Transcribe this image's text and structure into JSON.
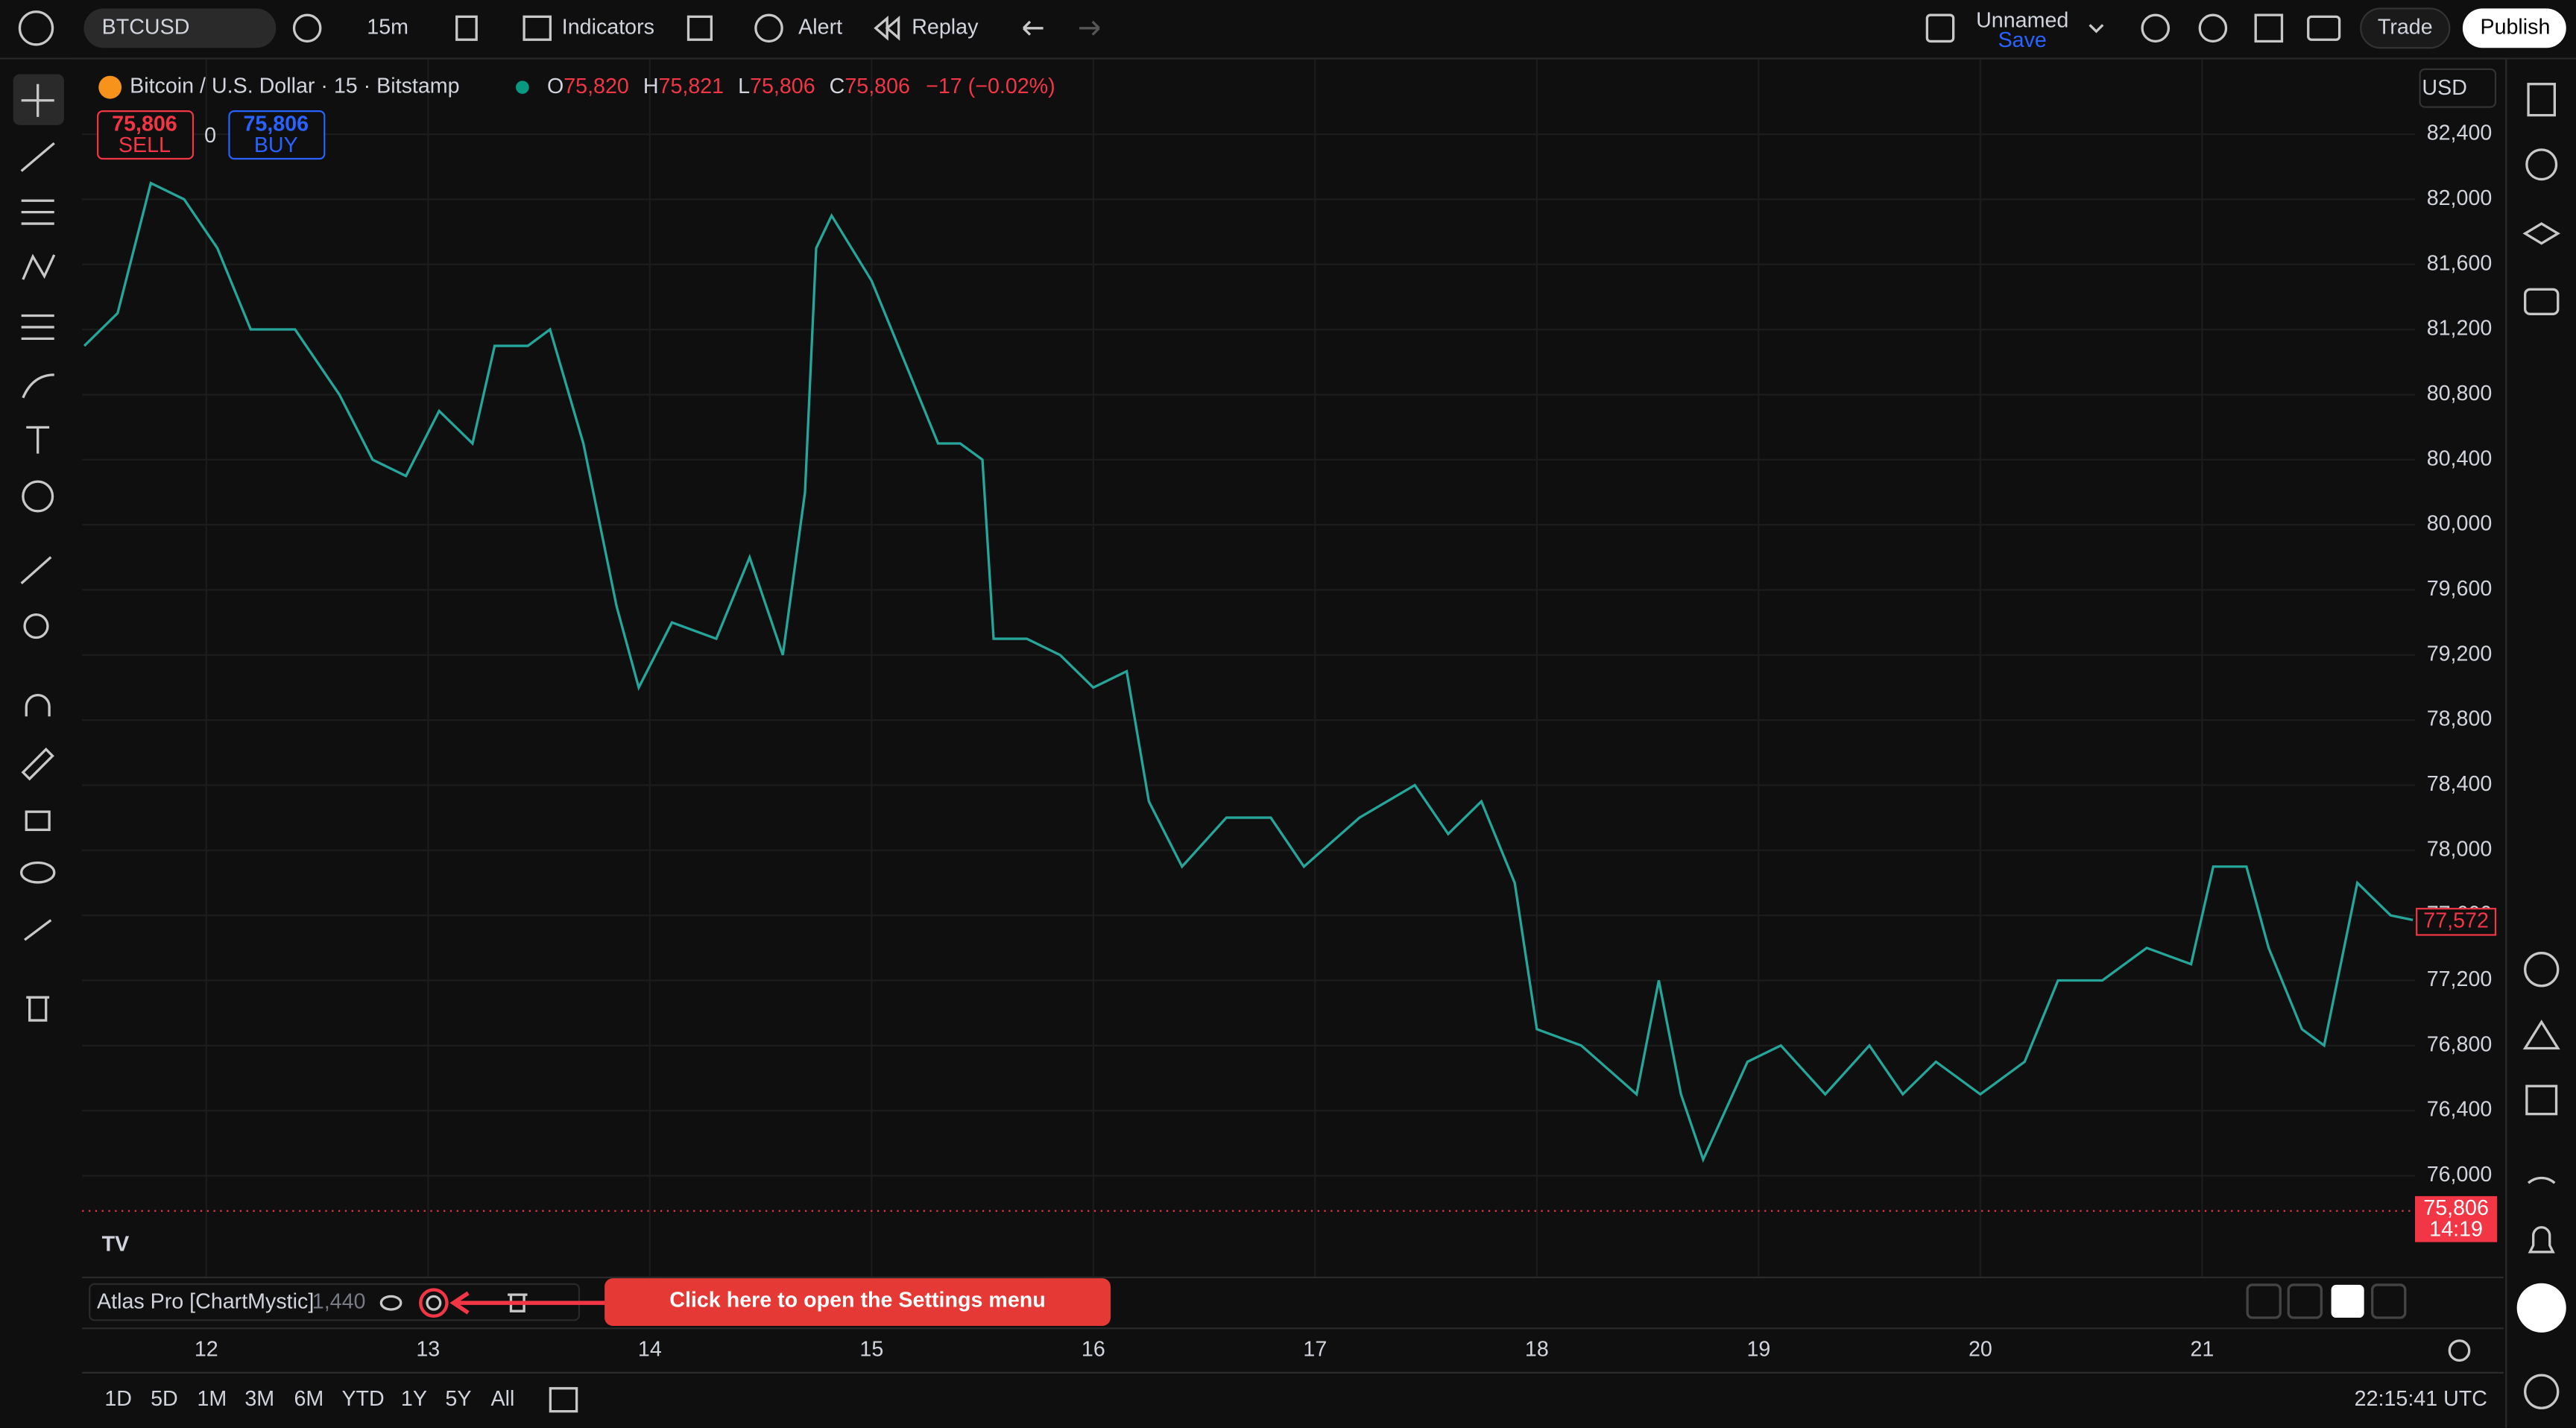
{
  "toolbar": {
    "symbol": "BTCUSD",
    "interval": "15m",
    "indicators": "Indicators",
    "alert": "Alert",
    "replay": "Replay",
    "layout_name": "Unnamed",
    "layout_save": "Save",
    "trade": "Trade",
    "publish": "Publish"
  },
  "legend": {
    "title": "Bitcoin / U.S. Dollar · 15 · Bitstamp",
    "open_label": "O",
    "open": "75,820",
    "high_label": "H",
    "high": "75,821",
    "low_label": "L",
    "low": "75,806",
    "close_label": "C",
    "close": "75,806",
    "change": "−17 (−0.02%)"
  },
  "trade_buttons": {
    "sell_price": "75,806",
    "sell": "SELL",
    "spread": "0",
    "buy_price": "75,806",
    "buy": "BUY"
  },
  "currency": "USD",
  "price_labels": {
    "last": "77,572",
    "current": "75,806",
    "countdown": "14:19"
  },
  "indicator": {
    "name": "Atlas Pro [ChartMystic]",
    "value": "1,440"
  },
  "annotation": "Click here to open the Settings menu",
  "ranges": [
    "1D",
    "5D",
    "1M",
    "3M",
    "6M",
    "YTD",
    "1Y",
    "5Y",
    "All"
  ],
  "clock": "22:15:41 UTC",
  "chart_data": {
    "type": "line",
    "grid": true,
    "xlim": [
      11.44,
      21.96
    ],
    "xticks": [
      12,
      13,
      14,
      15,
      16,
      17,
      18,
      19,
      20,
      21
    ],
    "ylim": [
      75380,
      82860
    ],
    "yticks": [
      {
        "value": 76000,
        "label": "76,000"
      },
      {
        "value": 76400,
        "label": "76,400"
      },
      {
        "value": 76800,
        "label": "76,800"
      },
      {
        "value": 77200,
        "label": "77,200"
      },
      {
        "value": 77600,
        "label": "77,600"
      },
      {
        "value": 78000,
        "label": "78,000"
      },
      {
        "value": 78400,
        "label": "78,400"
      },
      {
        "value": 78800,
        "label": "78,800"
      },
      {
        "value": 79200,
        "label": "79,200"
      },
      {
        "value": 79600,
        "label": "79,600"
      },
      {
        "value": 80000,
        "label": "80,000"
      },
      {
        "value": 80400,
        "label": "80,400"
      },
      {
        "value": 80800,
        "label": "80,800"
      },
      {
        "value": 81200,
        "label": "81,200"
      },
      {
        "value": 81600,
        "label": "81,600"
      },
      {
        "value": 82000,
        "label": "82,000"
      },
      {
        "value": 82400,
        "label": "82,400"
      }
    ],
    "series": [
      {
        "color": "#26a69a",
        "x": [
          11.45,
          11.6,
          11.75,
          11.9,
          12.05,
          12.2,
          12.4,
          12.6,
          12.75,
          12.9,
          13.05,
          13.2,
          13.3,
          13.45,
          13.55,
          13.7,
          13.85,
          13.95,
          14.1,
          14.3,
          14.45,
          14.6,
          14.7,
          14.75,
          14.82,
          15.0,
          15.15,
          15.3,
          15.4,
          15.5,
          15.55,
          15.7,
          15.85,
          16.0,
          16.15,
          16.25,
          16.4,
          16.6,
          16.8,
          16.95,
          17.2,
          17.45,
          17.6,
          17.75,
          17.9,
          18.0,
          18.2,
          18.45,
          18.55,
          18.65,
          18.75,
          18.95,
          19.1,
          19.3,
          19.5,
          19.65,
          19.8,
          20.0,
          20.2,
          20.35,
          20.55,
          20.75,
          20.95,
          21.05,
          21.2,
          21.3,
          21.45,
          21.55,
          21.7,
          21.85,
          21.95
        ],
        "values": [
          81100,
          81300,
          82100,
          82000,
          81700,
          81200,
          81200,
          80800,
          80400,
          80300,
          80700,
          80500,
          81100,
          81100,
          81200,
          80500,
          79500,
          79000,
          79400,
          79300,
          79800,
          79200,
          80200,
          81700,
          81900,
          81500,
          81000,
          80500,
          80500,
          80400,
          79300,
          79300,
          79200,
          79000,
          79100,
          78300,
          77900,
          78200,
          78200,
          77900,
          78200,
          78400,
          78100,
          78300,
          77800,
          76900,
          76800,
          76500,
          77200,
          76500,
          76100,
          76700,
          76800,
          76500,
          76800,
          76500,
          76700,
          76500,
          76700,
          77200,
          77200,
          77400,
          77300,
          77900,
          77900,
          77400,
          76900,
          76800,
          77800,
          77600,
          77572
        ]
      }
    ]
  }
}
